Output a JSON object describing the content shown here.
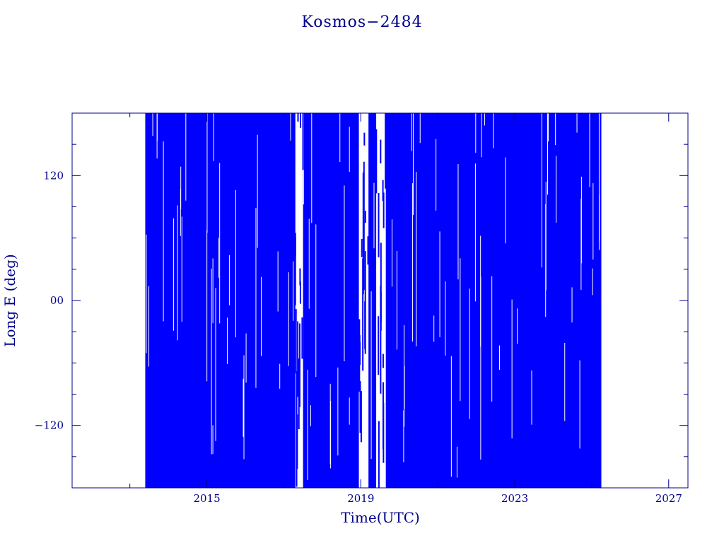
{
  "chart_data": {
    "type": "scatter",
    "title": "Kosmos−2484",
    "xlabel": "Time(UTC)",
    "ylabel": "Long E (deg)",
    "xlim": [
      2011.5,
      2027.5
    ],
    "ylim": [
      -180,
      180
    ],
    "x_ticks_major": [
      2015,
      2019,
      2023,
      2027
    ],
    "x_tick_labels": [
      "2015",
      "2019",
      "2023",
      "2027"
    ],
    "y_ticks_major": [
      -120,
      0,
      120
    ],
    "y_tick_labels": [
      "−120",
      "00",
      "120"
    ],
    "series_color": "#0000ff",
    "axis_color": "#00008b",
    "data_extent": {
      "x_start": 2013.4,
      "x_end": 2025.25
    },
    "filled_periods": [
      {
        "x_start": 2013.4,
        "x_end": 2017.3,
        "y_min": -180,
        "y_max": 180
      },
      {
        "x_start": 2017.5,
        "x_end": 2018.95,
        "y_min": -180,
        "y_max": 180
      },
      {
        "x_start": 2019.2,
        "x_end": 2019.4,
        "y_min": -180,
        "y_max": 180
      },
      {
        "x_start": 2019.65,
        "x_end": 2025.25,
        "y_min": -180,
        "y_max": 180
      }
    ],
    "gaps": [
      {
        "x_start": 2017.3,
        "x_end": 2017.5,
        "y_min": -180,
        "y_max": 180
      },
      {
        "x_start": 2018.95,
        "x_end": 2019.2,
        "y_min": -180,
        "y_max": 180
      },
      {
        "x_start": 2019.4,
        "x_end": 2019.65,
        "y_min": -180,
        "y_max": 180
      }
    ]
  }
}
